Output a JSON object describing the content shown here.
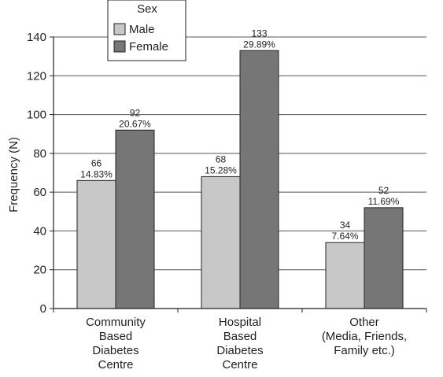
{
  "chart_data": {
    "type": "bar",
    "categories": [
      [
        "Community",
        "Based",
        "Diabetes",
        "Centre"
      ],
      [
        "Hospital",
        "Based",
        "Diabetes",
        "Centre"
      ],
      [
        "Other",
        "(Media, Friends,",
        "Family etc.)"
      ]
    ],
    "ylabel": "Frequency (N)",
    "ylim": [
      0,
      140
    ],
    "yticks": [
      0,
      20,
      40,
      60,
      80,
      100,
      120,
      140
    ],
    "legend_title": "Sex",
    "legend_position": "top-left",
    "series": [
      {
        "name": "Male",
        "color": "#c8c8c8",
        "values": [
          66,
          68,
          34
        ],
        "labels": [
          "14.83%",
          "15.28%",
          "7.64%"
        ]
      },
      {
        "name": "Female",
        "color": "#767676",
        "values": [
          92,
          133,
          52
        ],
        "labels": [
          "20.67%",
          "29.89%",
          "11.69%"
        ]
      }
    ]
  }
}
